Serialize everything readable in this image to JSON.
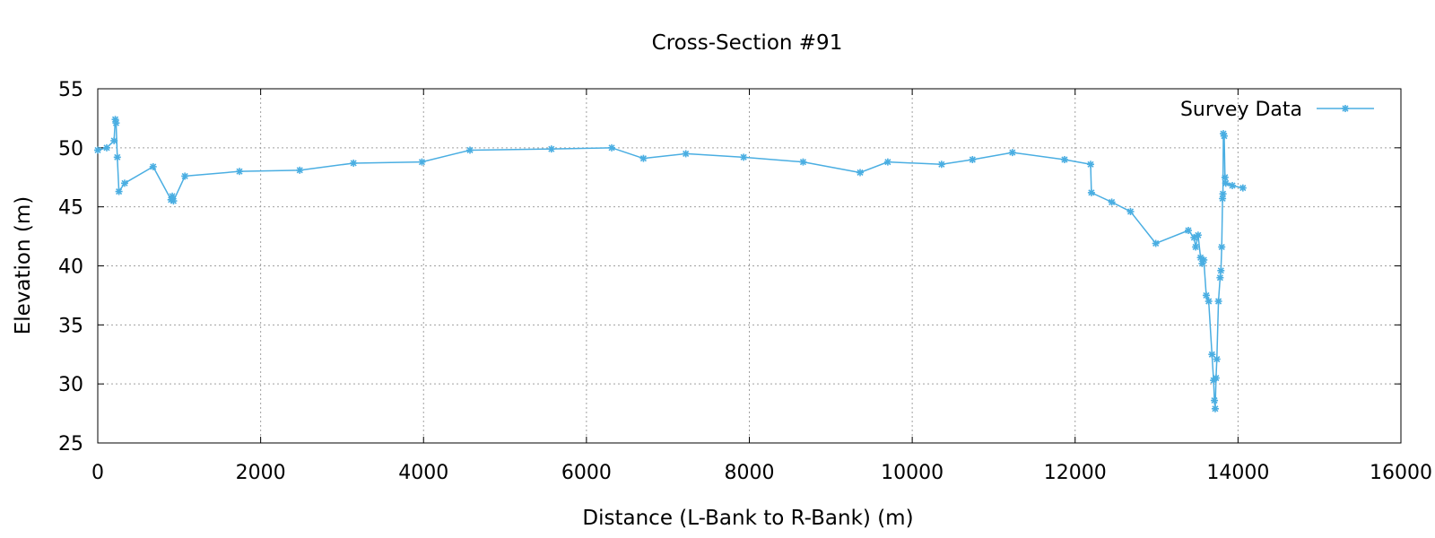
{
  "chart_data": {
    "type": "line",
    "title": "Cross-Section #91",
    "xlabel": "Distance (L-Bank to R-Bank) (m)",
    "ylabel": "Elevation (m)",
    "xlim": [
      0,
      16000
    ],
    "ylim": [
      25,
      55
    ],
    "xticks": [
      0,
      2000,
      4000,
      6000,
      8000,
      10000,
      12000,
      14000,
      16000
    ],
    "yticks": [
      25,
      30,
      35,
      40,
      45,
      50,
      55
    ],
    "grid": true,
    "legend_position": "top-right",
    "series": [
      {
        "name": "Survey Data",
        "color": "#4aaee2",
        "marker": "asterisk",
        "x": [
          0,
          110,
          200,
          215,
          225,
          240,
          260,
          330,
          680,
          900,
          915,
          930,
          1070,
          1740,
          2480,
          3140,
          3980,
          4570,
          5570,
          6310,
          6700,
          7220,
          7930,
          8660,
          9360,
          9700,
          10360,
          10740,
          11230,
          11870,
          12190,
          12200,
          12450,
          12680,
          12990,
          13390,
          13460,
          13480,
          13510,
          13540,
          13560,
          13580,
          13610,
          13640,
          13680,
          13700,
          13710,
          13720,
          13730,
          13740,
          13760,
          13780,
          13790,
          13800,
          13810,
          13815,
          13820,
          13830,
          13840,
          13850,
          13930,
          14060
        ],
        "y": [
          49.8,
          50.0,
          50.6,
          52.4,
          52.1,
          49.2,
          46.3,
          47.0,
          48.4,
          45.6,
          45.9,
          45.5,
          47.6,
          48.0,
          48.1,
          48.7,
          48.8,
          49.8,
          49.9,
          50.0,
          49.1,
          49.5,
          49.2,
          48.8,
          47.9,
          48.8,
          48.6,
          49.0,
          49.6,
          49.0,
          48.6,
          46.2,
          45.4,
          44.6,
          41.9,
          43.0,
          42.4,
          41.6,
          42.6,
          40.7,
          40.2,
          40.5,
          37.5,
          37.0,
          32.5,
          30.3,
          28.6,
          27.9,
          30.5,
          32.1,
          37.0,
          39.0,
          39.6,
          41.6,
          45.7,
          46.1,
          51.2,
          51.0,
          47.5,
          47.0,
          46.8,
          46.6
        ]
      }
    ]
  }
}
